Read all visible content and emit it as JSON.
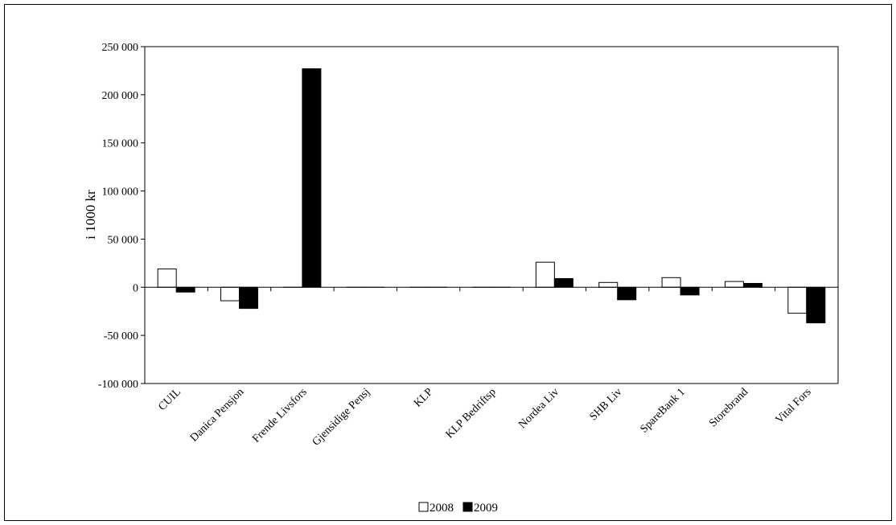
{
  "chart_data": {
    "type": "bar",
    "title": "",
    "xlabel": "",
    "ylabel": "i 1000 kr",
    "ylim": [
      -100000,
      250000
    ],
    "yticks": [
      250000,
      200000,
      150000,
      100000,
      50000,
      0,
      -50000,
      -100000
    ],
    "ytick_labels": [
      "250 000",
      "200 000",
      "150 000",
      "100 000",
      "50 000",
      "0",
      "-50 000",
      "-100 000"
    ],
    "categories": [
      "CUIL",
      "Danica Pensjon",
      "Frende Livsfors",
      "Gjensidige Pensj",
      "KLP",
      "KLP Bedriftsp",
      "Nordea Liv",
      "SHB Liv",
      "SpareBank 1",
      "Storebrand",
      "Vital Fors"
    ],
    "series": [
      {
        "name": "2008",
        "color": "#ffffff",
        "values": [
          19000,
          -14000,
          0,
          0,
          0,
          0,
          26000,
          5000,
          10000,
          6000,
          -27000
        ]
      },
      {
        "name": "2009",
        "color": "#000000",
        "values": [
          -5000,
          -22000,
          227000,
          0,
          0,
          0,
          9000,
          -13000,
          -8000,
          4000,
          -37000
        ]
      }
    ],
    "grid": false,
    "legend_position": "bottom"
  }
}
